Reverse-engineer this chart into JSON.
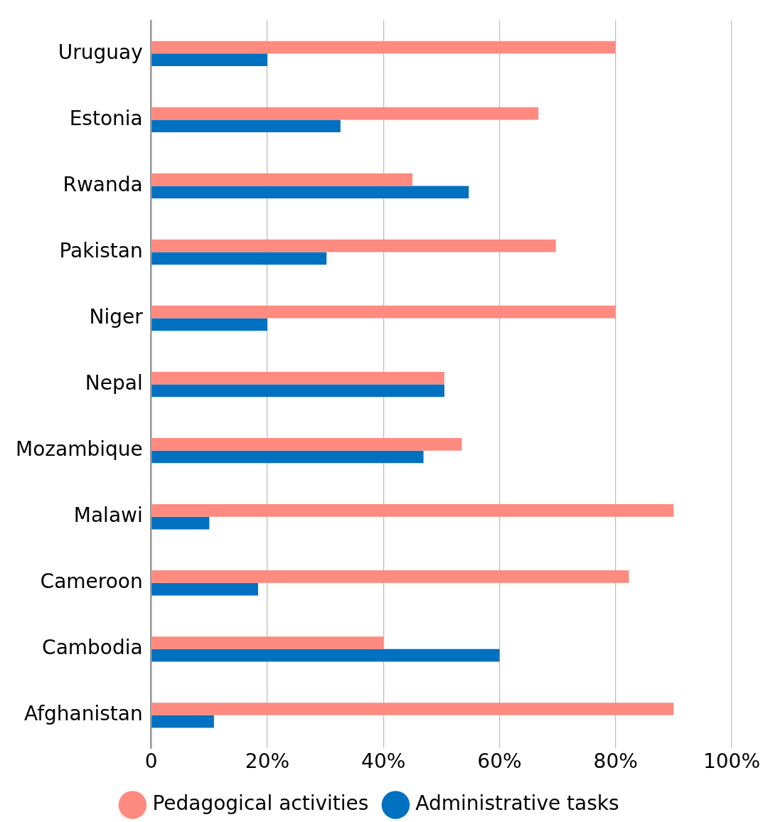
{
  "chart_data": {
    "type": "bar",
    "orientation": "horizontal",
    "categories": [
      "Uruguay",
      "Estonia",
      "Rwanda",
      "Pakistan",
      "Niger",
      "Nepal",
      "Mozambique",
      "Malawi",
      "Cameroon",
      "Cambodia",
      "Afghanistan"
    ],
    "series": [
      {
        "name": "Pedagogical activities",
        "color": "#ff8a80",
        "values": [
          80,
          66.7,
          45,
          69.7,
          80,
          50.5,
          53.5,
          90,
          82.3,
          40,
          90
        ]
      },
      {
        "name": "Administrative tasks",
        "color": "#0070c0",
        "values": [
          20,
          32.6,
          54.7,
          30.2,
          20,
          50.5,
          46.9,
          10,
          18.4,
          60,
          10.8
        ]
      }
    ],
    "xlim": [
      0,
      100
    ],
    "xticks": [
      0,
      {
        "value": 20,
        "label": "20%"
      },
      {
        "value": 40,
        "label": "40%"
      },
      {
        "value": 60,
        "label": "60%"
      },
      {
        "value": 80,
        "label": "80%"
      },
      {
        "value": 100,
        "label": "100%"
      }
    ],
    "grid": "x",
    "legend": "bottom",
    "marker": "circle"
  }
}
